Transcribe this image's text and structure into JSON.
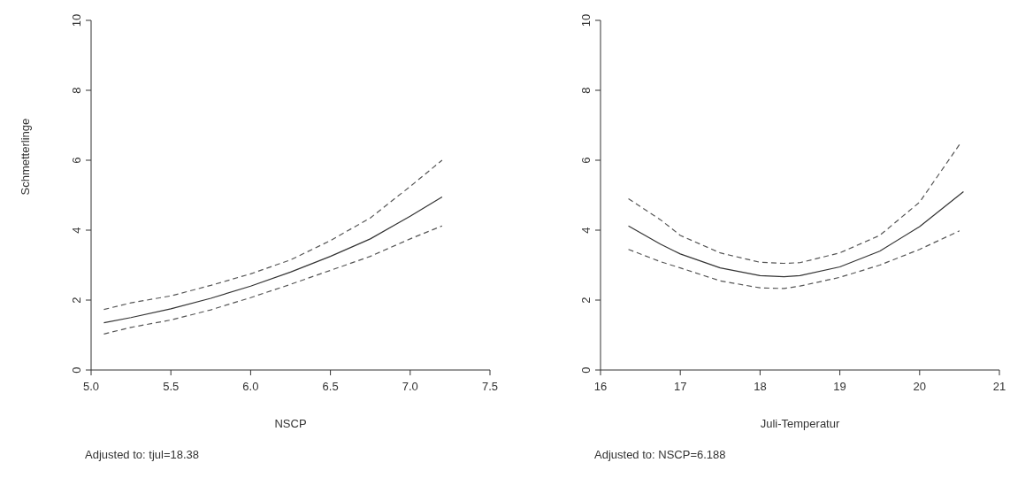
{
  "chart_data": [
    {
      "type": "line",
      "xlabel": "NSCP",
      "ylabel": "Schmetterlinge",
      "xlim": [
        5.0,
        7.5
      ],
      "xticks": [
        {
          "value": 5.0,
          "label": "5.0"
        },
        {
          "value": 5.5,
          "label": "5.5"
        },
        {
          "value": 6.0,
          "label": "6.0"
        },
        {
          "value": 6.5,
          "label": "6.5"
        },
        {
          "value": 7.0,
          "label": "7.0"
        },
        {
          "value": 7.5,
          "label": "7.5"
        }
      ],
      "ylim": [
        0,
        10
      ],
      "yticks": [
        0,
        2,
        4,
        6,
        8,
        10
      ],
      "grid": false,
      "marker": "none",
      "annotations": [
        "Adjusted to: tjul=18.38"
      ],
      "series": [
        {
          "color": "#333333",
          "line_style": "solid",
          "x": [
            5.08,
            5.25,
            5.5,
            5.75,
            6.0,
            6.25,
            6.5,
            6.75,
            7.0,
            7.2
          ],
          "values": [
            1.35,
            1.5,
            1.75,
            2.05,
            2.4,
            2.8,
            3.25,
            3.75,
            4.4,
            4.95
          ]
        },
        {
          "color": "#555555",
          "line_style": "dashed",
          "x": [
            5.08,
            5.25,
            5.5,
            5.75,
            6.0,
            6.25,
            6.5,
            6.75,
            7.0,
            7.2
          ],
          "values": [
            1.73,
            1.92,
            2.12,
            2.42,
            2.75,
            3.15,
            3.7,
            4.35,
            5.25,
            6.0
          ]
        },
        {
          "color": "#555555",
          "line_style": "dashed",
          "x": [
            5.08,
            5.25,
            5.5,
            5.75,
            6.0,
            6.25,
            6.5,
            6.75,
            7.0,
            7.2
          ],
          "values": [
            1.03,
            1.22,
            1.43,
            1.72,
            2.07,
            2.45,
            2.85,
            3.25,
            3.75,
            4.12
          ]
        }
      ]
    },
    {
      "type": "line",
      "xlabel": "Juli-Temperatur",
      "xlim": [
        16,
        21
      ],
      "xticks": [
        16,
        17,
        18,
        19,
        20,
        21
      ],
      "ylim": [
        0,
        10
      ],
      "yticks": [
        0,
        2,
        4,
        6,
        8,
        10
      ],
      "grid": false,
      "marker": "none",
      "annotations": [
        "Adjusted to: NSCP=6.188"
      ],
      "series": [
        {
          "color": "#333333",
          "line_style": "solid",
          "x": [
            16.35,
            16.75,
            17,
            17.5,
            18,
            18.3,
            18.5,
            19,
            19.5,
            20,
            20.55
          ],
          "values": [
            4.12,
            3.6,
            3.32,
            2.92,
            2.7,
            2.67,
            2.7,
            2.95,
            3.4,
            4.1,
            5.1
          ]
        },
        {
          "color": "#555555",
          "line_style": "dashed",
          "x": [
            16.35,
            16.75,
            17,
            17.5,
            18,
            18.3,
            18.5,
            19,
            19.5,
            20,
            20.5
          ],
          "values": [
            4.9,
            4.3,
            3.85,
            3.35,
            3.08,
            3.05,
            3.07,
            3.35,
            3.85,
            4.8,
            6.45
          ]
        },
        {
          "color": "#555555",
          "line_style": "dashed",
          "x": [
            16.35,
            16.75,
            17,
            17.5,
            18,
            18.3,
            18.5,
            19,
            19.5,
            20,
            20.5
          ],
          "values": [
            3.45,
            3.1,
            2.92,
            2.55,
            2.35,
            2.33,
            2.4,
            2.65,
            3.0,
            3.45,
            3.98
          ]
        }
      ]
    }
  ]
}
